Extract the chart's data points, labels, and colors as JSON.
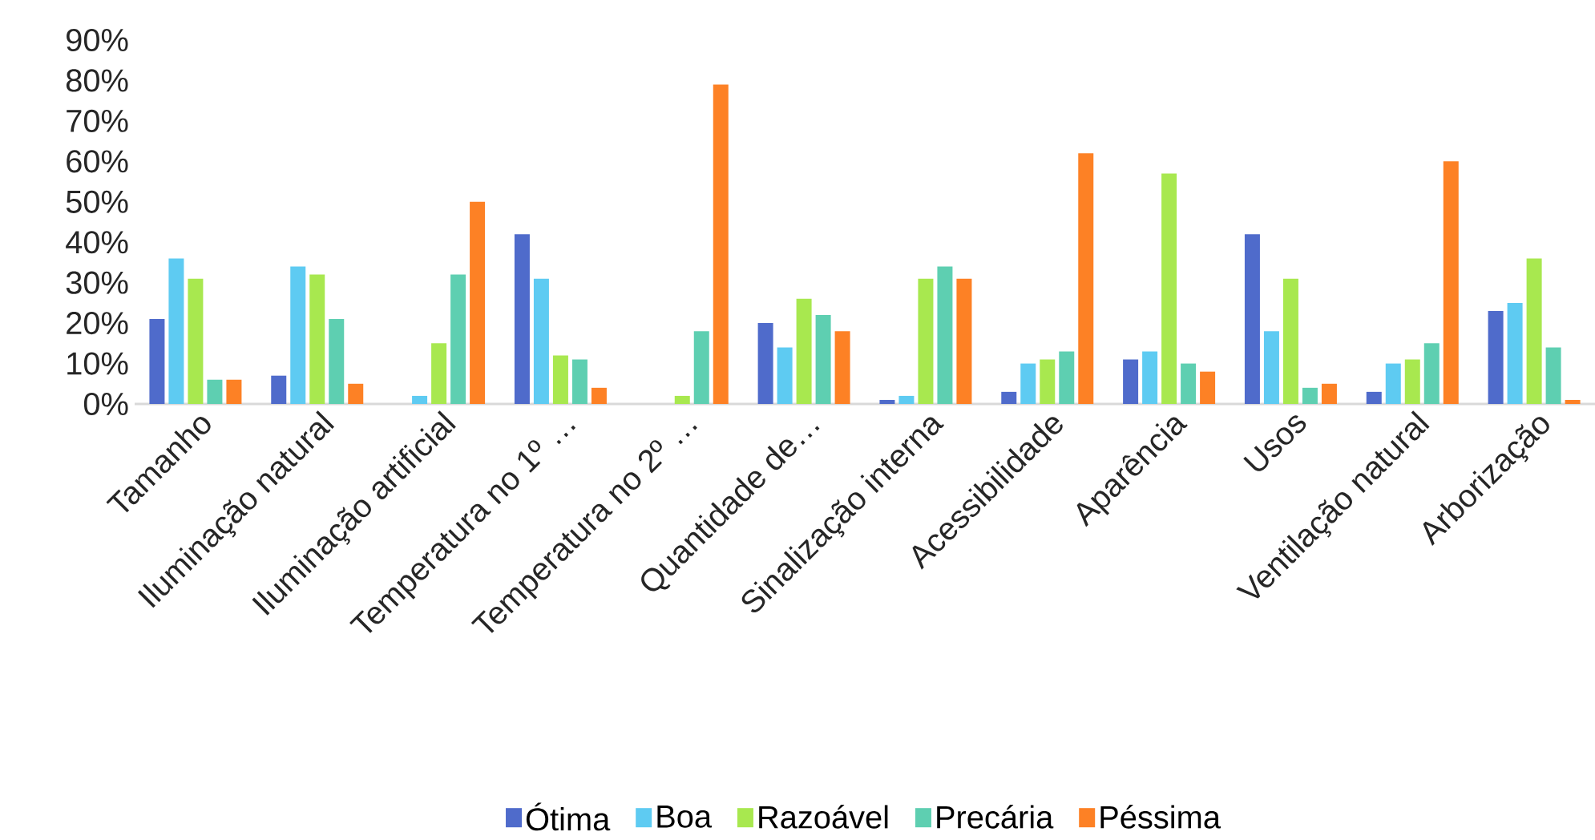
{
  "chart_data": {
    "type": "bar",
    "categories": [
      "Tamanho",
      "Iluminação natural",
      "Iluminação artificial",
      "Temperatura no 1º …",
      "Temperatura no 2º …",
      "Quantidade de…",
      "Sinalização interna",
      "Acessibilidade",
      "Aparência",
      "Usos",
      "Ventilação natural",
      "Arborização"
    ],
    "series": [
      {
        "name": "Ótima",
        "color": "#4f6bcb",
        "values": [
          21,
          7,
          0,
          42,
          0,
          20,
          1,
          3,
          11,
          42,
          3,
          23
        ]
      },
      {
        "name": "Boa",
        "color": "#5ecbf2",
        "values": [
          36,
          34,
          2,
          31,
          0,
          14,
          2,
          10,
          13,
          18,
          10,
          25
        ]
      },
      {
        "name": "Razoável",
        "color": "#a8e84f",
        "values": [
          31,
          32,
          15,
          12,
          2,
          26,
          31,
          11,
          57,
          31,
          11,
          36
        ]
      },
      {
        "name": "Precária",
        "color": "#5ecfb1",
        "values": [
          6,
          21,
          32,
          11,
          18,
          22,
          34,
          13,
          10,
          4,
          15,
          14
        ]
      },
      {
        "name": "Péssima",
        "color": "#fd8125",
        "values": [
          6,
          5,
          50,
          4,
          79,
          18,
          31,
          62,
          8,
          5,
          60,
          1
        ]
      }
    ],
    "ylim": [
      0,
      90
    ],
    "yticks": [
      {
        "value": 0,
        "label": "0%"
      },
      {
        "value": 10,
        "label": "10%"
      },
      {
        "value": 20,
        "label": "20%"
      },
      {
        "value": 30,
        "label": "30%"
      },
      {
        "value": 40,
        "label": "40%"
      },
      {
        "value": 50,
        "label": "50%"
      },
      {
        "value": 60,
        "label": "60%"
      },
      {
        "value": 70,
        "label": "70%"
      },
      {
        "value": 80,
        "label": "80%"
      },
      {
        "value": 90,
        "label": "90%"
      }
    ],
    "legend": "bottom"
  }
}
